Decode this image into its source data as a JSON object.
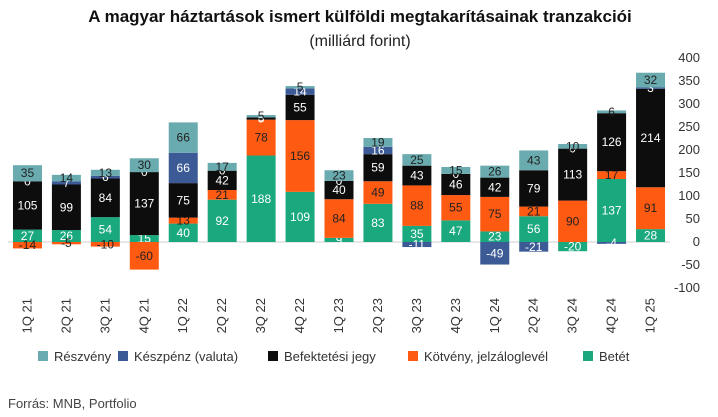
{
  "chart_data": {
    "type": "bar",
    "stacked": true,
    "title": "A magyar háztartások ismert külföldi megtakarításainak tranzakciói",
    "subtitle": "(milliárd forint)",
    "source": "Forrás: MNB, Portfolio",
    "categories": [
      "1Q 21",
      "2Q 21",
      "3Q 21",
      "4Q 21",
      "1Q 22",
      "2Q 22",
      "3Q 22",
      "4Q 22",
      "1Q 23",
      "2Q 23",
      "3Q 23",
      "4Q 23",
      "1Q 24",
      "2Q 24",
      "3Q 24",
      "4Q 24",
      "1Q 25"
    ],
    "ylim": [
      -100,
      400
    ],
    "yticks": [
      -100,
      -50,
      0,
      50,
      100,
      150,
      200,
      250,
      300,
      350,
      400
    ],
    "legend_position": "bottom",
    "grid": false,
    "series": [
      {
        "name": "Betét",
        "color": "#1aa87e",
        "values": [
          27,
          26,
          54,
          15,
          40,
          92,
          188,
          109,
          9,
          83,
          35,
          47,
          23,
          56,
          -20,
          137,
          28
        ]
      },
      {
        "name": "Kötvény, jelzáloglevél",
        "color": "#ff5a12",
        "values": [
          -14,
          -5,
          -10,
          -60,
          13,
          21,
          78,
          156,
          84,
          49,
          88,
          55,
          75,
          21,
          90,
          17,
          91
        ]
      },
      {
        "name": "Befektetési jegy",
        "color": "#0d0d0d",
        "values": [
          105,
          99,
          84,
          137,
          75,
          42,
          5,
          55,
          40,
          59,
          43,
          46,
          42,
          79,
          113,
          126,
          214
        ]
      },
      {
        "name": "Készpénz (valuta)",
        "color": "#3c5a96",
        "values": [
          0,
          7,
          6,
          0,
          66,
          0,
          0,
          14,
          0,
          16,
          -11,
          0,
          -49,
          -21,
          0,
          -4,
          3
        ]
      },
      {
        "name": "Részvény",
        "color": "#6aabaf",
        "values": [
          35,
          14,
          13,
          30,
          66,
          17,
          5,
          5,
          23,
          19,
          25,
          15,
          26,
          43,
          10,
          6,
          32
        ]
      }
    ]
  }
}
